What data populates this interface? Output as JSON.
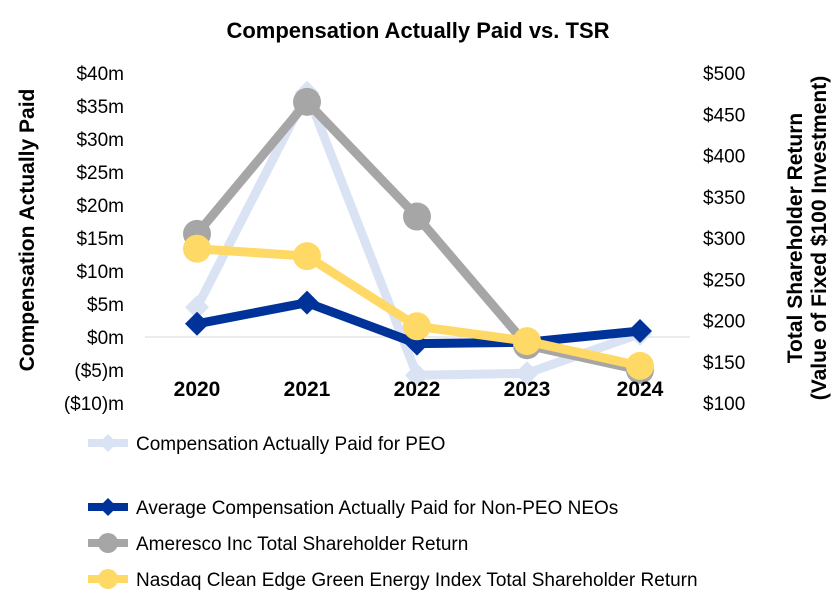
{
  "chart_data": {
    "type": "line",
    "title": "Compensation Actually Paid vs. TSR",
    "categories": [
      "2020",
      "2021",
      "2022",
      "2023",
      "2024"
    ],
    "ylabel": "Compensation Actually Paid",
    "y2label_line1": "Total Shareholder Return",
    "y2label_line2": "(Value of Fixed $100 Investment)",
    "ylim": [
      -10,
      40
    ],
    "y2lim": [
      100,
      500
    ],
    "y_ticks": [
      {
        "value": 40,
        "label": "$40m"
      },
      {
        "value": 35,
        "label": "$35m"
      },
      {
        "value": 30,
        "label": "$30m"
      },
      {
        "value": 25,
        "label": "$25m"
      },
      {
        "value": 20,
        "label": "$20m"
      },
      {
        "value": 15,
        "label": "$15m"
      },
      {
        "value": 10,
        "label": "$10m"
      },
      {
        "value": 5,
        "label": "$5m"
      },
      {
        "value": 0,
        "label": "$0m"
      },
      {
        "value": -5,
        "label": "($5)m"
      },
      {
        "value": -10,
        "label": "($10)m"
      }
    ],
    "y2_ticks": [
      {
        "value": 500,
        "label": "$500"
      },
      {
        "value": 450,
        "label": "$450"
      },
      {
        "value": 400,
        "label": "$400"
      },
      {
        "value": 350,
        "label": "$350"
      },
      {
        "value": 300,
        "label": "$300"
      },
      {
        "value": 250,
        "label": "$250"
      },
      {
        "value": 200,
        "label": "$200"
      },
      {
        "value": 150,
        "label": "$150"
      },
      {
        "value": 100,
        "label": "$100"
      }
    ],
    "series": [
      {
        "name": "Compensation Actually Paid for PEO",
        "axis": "left",
        "color": "#DAE3F3",
        "marker": "diamond",
        "values": [
          4.5,
          37.0,
          -5.8,
          -5.5,
          0.5
        ]
      },
      {
        "name": "Average Compensation Actually Paid for Non-PEO NEOs",
        "axis": "left",
        "color": "#003399",
        "marker": "diamond",
        "values": [
          2.0,
          5.2,
          -1.0,
          -0.8,
          0.9
        ]
      },
      {
        "name": "Ameresco Inc Total Shareholder Return",
        "axis": "right",
        "color": "#A6A6A6",
        "marker": "circle",
        "values": [
          305,
          465,
          326,
          170,
          140
        ]
      },
      {
        "name": "Nasdaq Clean Edge Green Energy Index Total Shareholder Return",
        "axis": "right",
        "color": "#FFD966",
        "marker": "circle",
        "values": [
          287,
          278,
          193,
          175,
          145
        ]
      }
    ]
  }
}
